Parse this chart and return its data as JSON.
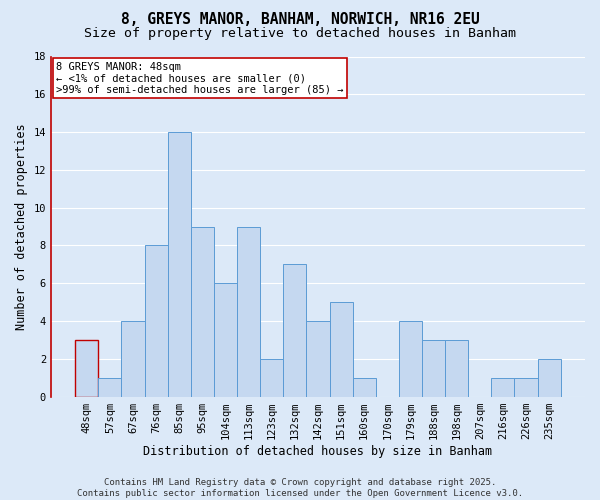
{
  "title1": "8, GREYS MANOR, BANHAM, NORWICH, NR16 2EU",
  "title2": "Size of property relative to detached houses in Banham",
  "xlabel": "Distribution of detached houses by size in Banham",
  "ylabel": "Number of detached properties",
  "categories": [
    "48sqm",
    "57sqm",
    "67sqm",
    "76sqm",
    "85sqm",
    "95sqm",
    "104sqm",
    "113sqm",
    "123sqm",
    "132sqm",
    "142sqm",
    "151sqm",
    "160sqm",
    "170sqm",
    "179sqm",
    "188sqm",
    "198sqm",
    "207sqm",
    "216sqm",
    "226sqm",
    "235sqm"
  ],
  "values": [
    3,
    1,
    4,
    8,
    14,
    9,
    6,
    9,
    2,
    7,
    4,
    5,
    1,
    0,
    4,
    3,
    3,
    0,
    1,
    1,
    2
  ],
  "bar_color": "#c5d8f0",
  "bar_edge_color": "#5b9bd5",
  "highlight_index": 0,
  "highlight_bar_edge_color": "#c00000",
  "annotation_line1": "8 GREYS MANOR: 48sqm",
  "annotation_line2": "← <1% of detached houses are smaller (0)",
  "annotation_line3": ">99% of semi-detached houses are larger (85) →",
  "annotation_box_color": "#ffffff",
  "annotation_box_edge_color": "#c00000",
  "ylim": [
    0,
    18
  ],
  "yticks": [
    0,
    2,
    4,
    6,
    8,
    10,
    12,
    14,
    16,
    18
  ],
  "background_color": "#dce9f8",
  "plot_bg_color": "#dce9f8",
  "grid_color": "#ffffff",
  "left_spine_color": "#c00000",
  "footer_text": "Contains HM Land Registry data © Crown copyright and database right 2025.\nContains public sector information licensed under the Open Government Licence v3.0.",
  "title1_fontsize": 10.5,
  "title2_fontsize": 9.5,
  "xlabel_fontsize": 8.5,
  "ylabel_fontsize": 8.5,
  "tick_fontsize": 7.5,
  "annotation_fontsize": 7.5,
  "footer_fontsize": 6.5
}
